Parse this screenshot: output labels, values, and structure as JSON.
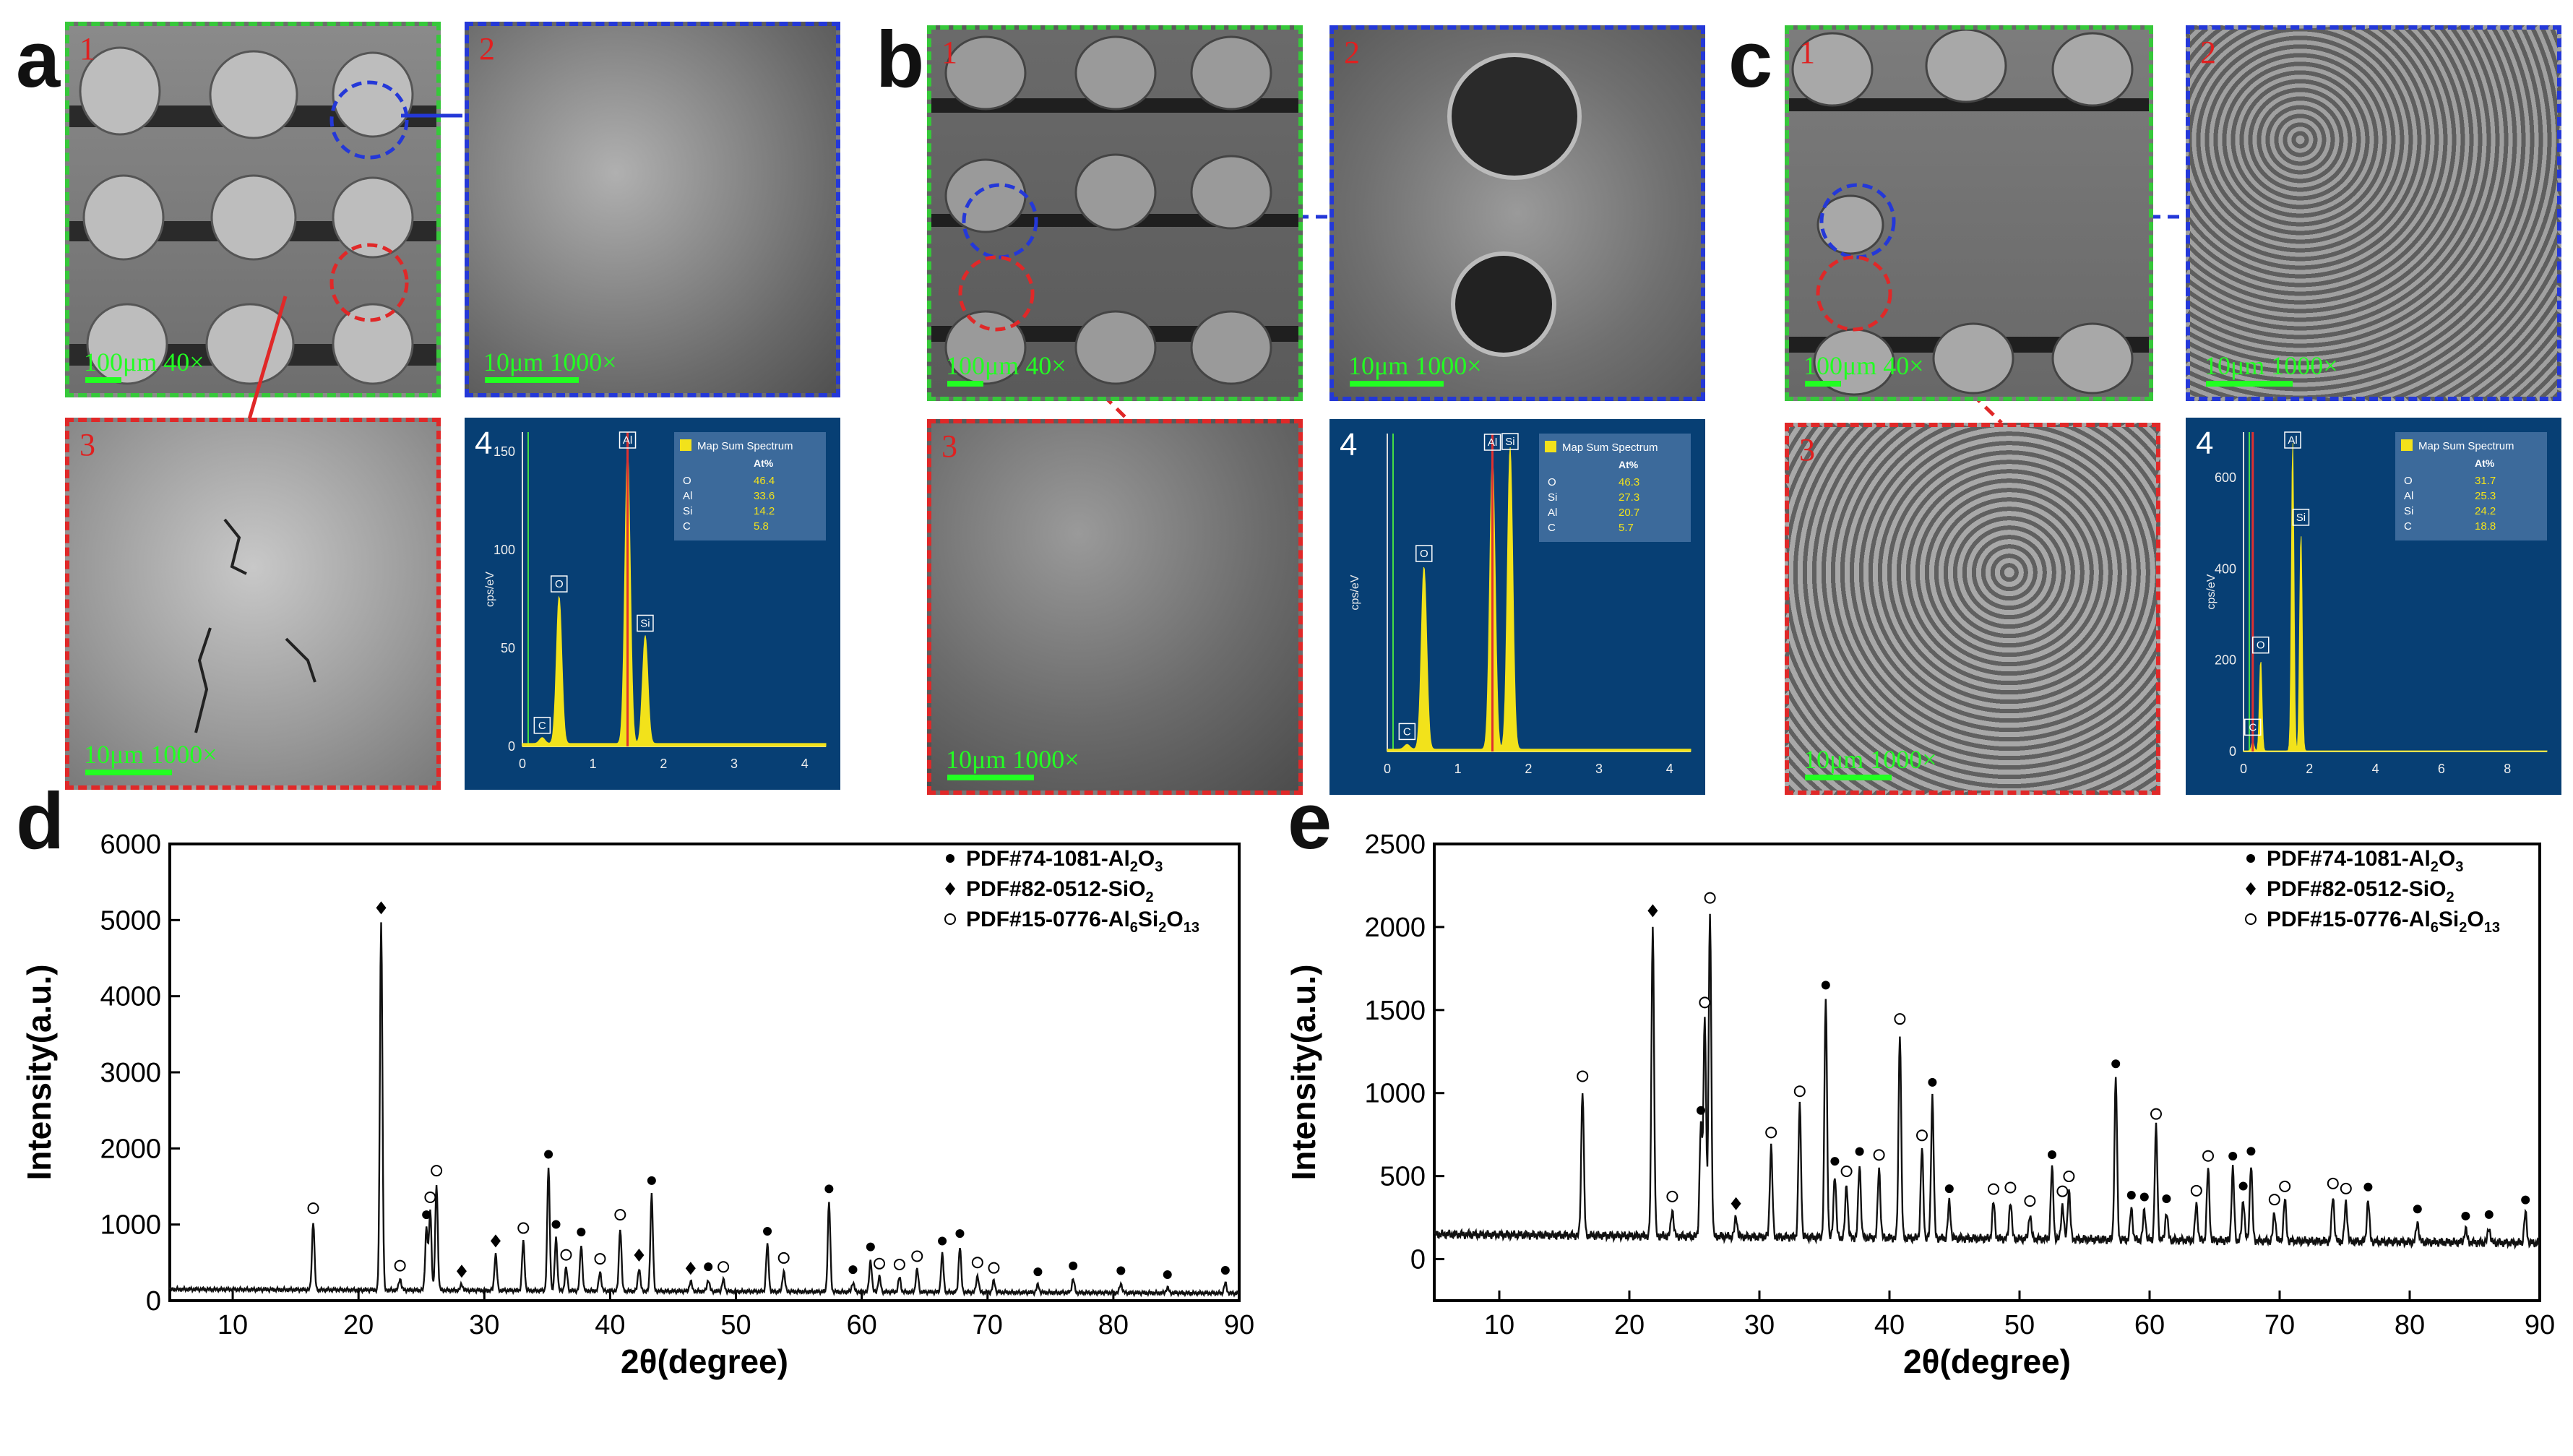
{
  "panel_letters": [
    "a",
    "b",
    "c",
    "d",
    "e"
  ],
  "sem": {
    "tile_numbers": [
      "1",
      "2",
      "3",
      "4"
    ],
    "scale_100": "100μm   40×",
    "scale_10": "10μm   1000×"
  },
  "eds_panels": [
    {
      "id": "a4",
      "legend_title": "Map Sum Spectrum",
      "legend_header": "At%",
      "rows": [
        [
          "O",
          "46.4"
        ],
        [
          "Al",
          "33.6"
        ],
        [
          "Si",
          "14.2"
        ],
        [
          "C",
          "5.8"
        ]
      ],
      "xticks": [
        "0",
        "1",
        "2",
        "3",
        "4"
      ],
      "yticks": [
        "0",
        "50",
        "100",
        "150"
      ],
      "ylabel": "cps/eV",
      "peaks": [
        "C",
        "O",
        "Al",
        "Si"
      ]
    },
    {
      "id": "b4",
      "legend_title": "Map Sum Spectrum",
      "legend_header": "At%",
      "rows": [
        [
          "O",
          "46.3"
        ],
        [
          "Si",
          "27.3"
        ],
        [
          "Al",
          "20.7"
        ],
        [
          "C",
          "5.7"
        ]
      ],
      "xticks": [
        "0",
        "1",
        "2",
        "3",
        "4"
      ],
      "yticks": [],
      "ylabel": "cps/eV",
      "peaks": [
        "C",
        "O",
        "Al",
        "Si"
      ]
    },
    {
      "id": "c4",
      "legend_title": "Map Sum Spectrum",
      "legend_header": "At%",
      "rows": [
        [
          "O",
          "31.7"
        ],
        [
          "Al",
          "25.3"
        ],
        [
          "Si",
          "24.2"
        ],
        [
          "C",
          "18.8"
        ]
      ],
      "xticks": [
        "0",
        "2",
        "4",
        "6",
        "8"
      ],
      "yticks": [
        "0",
        "200",
        "400",
        "600"
      ],
      "ylabel": "cps/eV",
      "peaks": [
        "C",
        "O",
        "Al",
        "Si"
      ]
    }
  ],
  "chart_data": [
    {
      "type": "line",
      "panel": "d",
      "xlabel": "2θ(degree)",
      "ylabel": "Intensity(a.u.)",
      "xlim": [
        5,
        90
      ],
      "ylim": [
        0,
        6000
      ],
      "xticks": [
        10,
        20,
        30,
        40,
        50,
        60,
        70,
        80,
        90
      ],
      "yticks": [
        0,
        1000,
        2000,
        3000,
        4000,
        5000,
        6000
      ],
      "legend": [
        {
          "marker": "●",
          "text": "PDF#74-1081-Al",
          "sub1": "2",
          "mid": "O",
          "sub2": "3",
          "end": ""
        },
        {
          "marker": "◆",
          "text": "PDF#82-0512-SiO",
          "sub1": "2",
          "mid": "",
          "sub2": "",
          "end": ""
        },
        {
          "marker": "○",
          "text": "PDF#15-0776-Al",
          "sub1": "6",
          "mid": "Si",
          "sub2": "2",
          "end": "O13"
        }
      ],
      "baseline": 150,
      "peaks": [
        {
          "x": 16.4,
          "y": 900,
          "m": "o"
        },
        {
          "x": 21.8,
          "y": 4850,
          "m": "d"
        },
        {
          "x": 23.3,
          "y": 150,
          "m": "o"
        },
        {
          "x": 25.4,
          "y": 820,
          "m": "f"
        },
        {
          "x": 25.7,
          "y": 1050,
          "m": "o"
        },
        {
          "x": 26.2,
          "y": 1400,
          "m": "o"
        },
        {
          "x": 28.2,
          "y": 80,
          "m": "d"
        },
        {
          "x": 30.9,
          "y": 480,
          "m": "d"
        },
        {
          "x": 33.1,
          "y": 650,
          "m": "o"
        },
        {
          "x": 35.1,
          "y": 1620,
          "m": "f"
        },
        {
          "x": 35.7,
          "y": 700,
          "m": "f"
        },
        {
          "x": 36.5,
          "y": 300,
          "m": "o"
        },
        {
          "x": 37.7,
          "y": 600,
          "m": "f"
        },
        {
          "x": 39.2,
          "y": 250,
          "m": "o"
        },
        {
          "x": 40.8,
          "y": 830,
          "m": "o"
        },
        {
          "x": 42.3,
          "y": 300,
          "m": "d"
        },
        {
          "x": 43.3,
          "y": 1280,
          "m": "f"
        },
        {
          "x": 46.4,
          "y": 130,
          "m": "d"
        },
        {
          "x": 47.8,
          "y": 150,
          "m": "f"
        },
        {
          "x": 49.0,
          "y": 150,
          "m": "o"
        },
        {
          "x": 52.5,
          "y": 620,
          "m": "f"
        },
        {
          "x": 53.8,
          "y": 270,
          "m": "o"
        },
        {
          "x": 57.4,
          "y": 1180,
          "m": "f"
        },
        {
          "x": 59.3,
          "y": 120,
          "m": "f"
        },
        {
          "x": 60.7,
          "y": 420,
          "m": "f"
        },
        {
          "x": 61.4,
          "y": 200,
          "m": "o"
        },
        {
          "x": 63.0,
          "y": 190,
          "m": "o"
        },
        {
          "x": 64.4,
          "y": 300,
          "m": "o"
        },
        {
          "x": 66.4,
          "y": 500,
          "m": "f"
        },
        {
          "x": 67.8,
          "y": 600,
          "m": "f"
        },
        {
          "x": 69.2,
          "y": 220,
          "m": "o"
        },
        {
          "x": 70.5,
          "y": 150,
          "m": "o"
        },
        {
          "x": 74.0,
          "y": 100,
          "m": "f"
        },
        {
          "x": 76.8,
          "y": 180,
          "m": "f"
        },
        {
          "x": 80.6,
          "y": 120,
          "m": "f"
        },
        {
          "x": 84.3,
          "y": 70,
          "m": "f"
        },
        {
          "x": 88.9,
          "y": 130,
          "m": "f"
        }
      ]
    },
    {
      "type": "line",
      "panel": "e",
      "xlabel": "2θ(degree)",
      "ylabel": "Intensity(a.u.)",
      "xlim": [
        5,
        90
      ],
      "ylim": [
        -250,
        2500
      ],
      "xticks": [
        10,
        20,
        30,
        40,
        50,
        60,
        70,
        80,
        90
      ],
      "yticks": [
        0,
        500,
        1000,
        1500,
        2000,
        2500
      ],
      "legend": [
        {
          "marker": "●",
          "text": "PDF#74-1081-Al",
          "sub1": "2",
          "mid": "O",
          "sub2": "3",
          "end": ""
        },
        {
          "marker": "◆",
          "text": "PDF#82-0512-SiO",
          "sub1": "2",
          "mid": "",
          "sub2": "",
          "end": ""
        },
        {
          "marker": "○",
          "text": "PDF#15-0776-Al",
          "sub1": "6",
          "mid": "Si",
          "sub2": "2",
          "end": "O13"
        }
      ],
      "baseline": 150,
      "peaks": [
        {
          "x": 16.4,
          "y": 880,
          "m": "o"
        },
        {
          "x": 21.8,
          "y": 1880,
          "m": "d"
        },
        {
          "x": 23.3,
          "y": 160,
          "m": "o"
        },
        {
          "x": 25.5,
          "y": 680,
          "m": "f"
        },
        {
          "x": 25.8,
          "y": 1330,
          "m": "o"
        },
        {
          "x": 26.2,
          "y": 1960,
          "m": "o"
        },
        {
          "x": 28.2,
          "y": 120,
          "m": "d"
        },
        {
          "x": 30.9,
          "y": 550,
          "m": "o"
        },
        {
          "x": 33.1,
          "y": 800,
          "m": "o"
        },
        {
          "x": 35.1,
          "y": 1440,
          "m": "f"
        },
        {
          "x": 35.8,
          "y": 380,
          "m": "f"
        },
        {
          "x": 36.7,
          "y": 320,
          "m": "o"
        },
        {
          "x": 37.7,
          "y": 440,
          "m": "f"
        },
        {
          "x": 39.2,
          "y": 420,
          "m": "o"
        },
        {
          "x": 40.8,
          "y": 1240,
          "m": "o"
        },
        {
          "x": 42.5,
          "y": 540,
          "m": "o"
        },
        {
          "x": 43.3,
          "y": 860,
          "m": "f"
        },
        {
          "x": 44.6,
          "y": 220,
          "m": "f"
        },
        {
          "x": 48.0,
          "y": 220,
          "m": "o"
        },
        {
          "x": 49.3,
          "y": 230,
          "m": "o"
        },
        {
          "x": 50.8,
          "y": 150,
          "m": "o"
        },
        {
          "x": 52.5,
          "y": 430,
          "m": "f"
        },
        {
          "x": 53.3,
          "y": 210,
          "m": "o"
        },
        {
          "x": 53.8,
          "y": 300,
          "m": "o"
        },
        {
          "x": 57.4,
          "y": 980,
          "m": "f"
        },
        {
          "x": 58.6,
          "y": 190,
          "m": "f"
        },
        {
          "x": 59.6,
          "y": 180,
          "m": "f"
        },
        {
          "x": 60.5,
          "y": 680,
          "m": "o"
        },
        {
          "x": 61.3,
          "y": 170,
          "m": "f"
        },
        {
          "x": 63.6,
          "y": 220,
          "m": "o"
        },
        {
          "x": 64.5,
          "y": 430,
          "m": "o"
        },
        {
          "x": 66.4,
          "y": 430,
          "m": "f"
        },
        {
          "x": 67.2,
          "y": 250,
          "m": "f"
        },
        {
          "x": 67.8,
          "y": 460,
          "m": "f"
        },
        {
          "x": 69.6,
          "y": 170,
          "m": "o"
        },
        {
          "x": 70.4,
          "y": 250,
          "m": "o"
        },
        {
          "x": 74.1,
          "y": 270,
          "m": "o"
        },
        {
          "x": 75.1,
          "y": 240,
          "m": "o"
        },
        {
          "x": 76.8,
          "y": 250,
          "m": "f"
        },
        {
          "x": 80.6,
          "y": 120,
          "m": "f"
        },
        {
          "x": 84.3,
          "y": 80,
          "m": "f"
        },
        {
          "x": 86.1,
          "y": 90,
          "m": "f"
        },
        {
          "x": 88.9,
          "y": 180,
          "m": "f"
        }
      ]
    }
  ]
}
